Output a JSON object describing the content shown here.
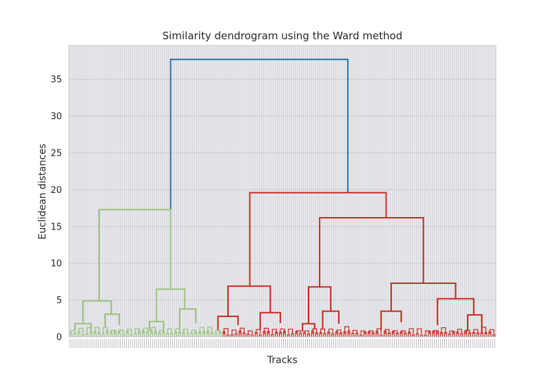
{
  "chart_data": {
    "type": "dendrogram",
    "title": "Similarity dendrogram using the Ward method",
    "xlabel": "Tracks",
    "ylabel": "Euclidean distances",
    "ylim": [
      0,
      39.6
    ],
    "yticks": [
      0,
      5,
      10,
      15,
      20,
      25,
      30,
      35
    ],
    "grid": true,
    "leaf_count": 212,
    "colors": {
      "left_cluster": "#9ac47b",
      "right_cluster": "#c92b1d",
      "root": "#1f73a6",
      "grid": "#cccccc",
      "background": "#eaeaf2"
    },
    "links": [
      {
        "name": "root",
        "color": "root",
        "height": 37.7,
        "left": {
          "x": 50.5,
          "y": 17.3
        },
        "right": {
          "x": 138.5,
          "y": 19.6
        }
      },
      {
        "name": "left-top",
        "color": "left_cluster",
        "height": 17.3,
        "left": {
          "x": 15,
          "y": 4.9
        },
        "right": {
          "x": 50.5,
          "y": 6.5
        }
      },
      {
        "name": "left-a",
        "color": "left_cluster",
        "height": 4.9,
        "left": {
          "x": 7,
          "y": 1.8
        },
        "right": {
          "x": 21,
          "y": 3.1
        }
      },
      {
        "name": "left-a1",
        "color": "left_cluster",
        "height": 1.8,
        "left": {
          "x": 3,
          "y": 0.9
        },
        "right": {
          "x": 11,
          "y": 0.8
        }
      },
      {
        "name": "left-a2",
        "color": "left_cluster",
        "height": 3.1,
        "left": {
          "x": 18,
          "y": 1.4
        },
        "right": {
          "x": 25,
          "y": 1.6
        }
      },
      {
        "name": "left-b",
        "color": "left_cluster",
        "height": 6.5,
        "left": {
          "x": 43.5,
          "y": 2.1
        },
        "right": {
          "x": 57.5,
          "y": 3.8
        }
      },
      {
        "name": "left-b1",
        "color": "left_cluster",
        "height": 2.1,
        "left": {
          "x": 40,
          "y": 0.8
        },
        "right": {
          "x": 47,
          "y": 0.9
        }
      },
      {
        "name": "left-b2",
        "color": "left_cluster",
        "height": 3.8,
        "left": {
          "x": 55,
          "y": 1.0
        },
        "right": {
          "x": 63,
          "y": 1.9
        }
      },
      {
        "name": "right-top",
        "color": "right_cluster",
        "height": 19.6,
        "left": {
          "x": 89.8,
          "y": 6.9
        },
        "right": {
          "x": 157.5,
          "y": 16.2
        }
      },
      {
        "name": "right-a",
        "color": "right_cluster",
        "height": 6.9,
        "left": {
          "x": 79,
          "y": 2.8
        },
        "right": {
          "x": 100,
          "y": 3.3
        }
      },
      {
        "name": "right-a1",
        "color": "right_cluster",
        "height": 2.8,
        "left": {
          "x": 74,
          "y": 0.9
        },
        "right": {
          "x": 84,
          "y": 1.6
        }
      },
      {
        "name": "right-a2",
        "color": "right_cluster",
        "height": 3.3,
        "left": {
          "x": 95,
          "y": 1.0
        },
        "right": {
          "x": 105,
          "y": 1.9
        }
      },
      {
        "name": "right-b",
        "color": "right_cluster",
        "height": 16.2,
        "left": {
          "x": 124.5,
          "y": 6.8
        },
        "right": {
          "x": 176,
          "y": 7.3
        }
      },
      {
        "name": "right-b1",
        "color": "right_cluster",
        "height": 6.8,
        "left": {
          "x": 119,
          "y": 1.8
        },
        "right": {
          "x": 130,
          "y": 3.5
        }
      },
      {
        "name": "right-b1a",
        "color": "right_cluster",
        "height": 1.8,
        "left": {
          "x": 116,
          "y": 0.7
        },
        "right": {
          "x": 122,
          "y": 1.0
        }
      },
      {
        "name": "right-b1b",
        "color": "right_cluster",
        "height": 3.5,
        "left": {
          "x": 126,
          "y": 1.1
        },
        "right": {
          "x": 134,
          "y": 1.8
        }
      },
      {
        "name": "right-b2",
        "color": "right_cluster",
        "height": 7.3,
        "left": {
          "x": 160,
          "y": 3.5
        },
        "right": {
          "x": 192,
          "y": 5.2
        }
      },
      {
        "name": "right-b2a",
        "color": "right_cluster",
        "height": 3.5,
        "left": {
          "x": 155,
          "y": 0.9
        },
        "right": {
          "x": 165,
          "y": 2.0
        }
      },
      {
        "name": "right-b2b",
        "color": "right_cluster",
        "height": 5.2,
        "left": {
          "x": 183,
          "y": 1.6
        },
        "right": {
          "x": 201,
          "y": 3.0
        }
      },
      {
        "name": "right-b2b1",
        "color": "right_cluster",
        "height": 3.0,
        "left": {
          "x": 198,
          "y": 0.8
        },
        "right": {
          "x": 205,
          "y": 0.7
        }
      }
    ]
  }
}
